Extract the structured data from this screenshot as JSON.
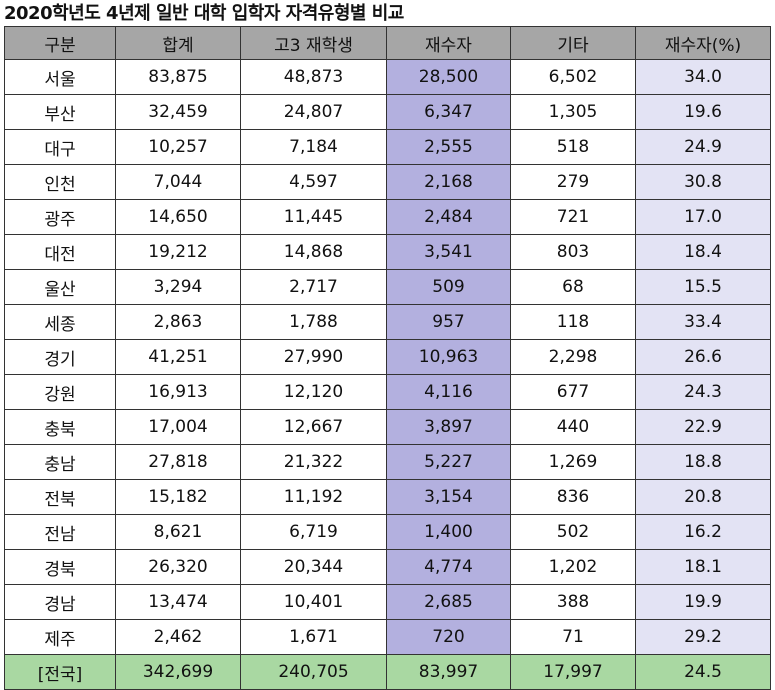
{
  "title": "2020학년도 4년제 일반 대학 입학자 자격유형별 비교",
  "colors": {
    "header_bg": "#a6a6a6",
    "jaesu_bg": "#b3b0df",
    "percent_bg": "#e3e3f4",
    "total_bg": "#a9d8a2"
  },
  "chart_data": {
    "type": "table",
    "title": "2020학년도 4년제 일반 대학 입학자 자격유형별 비교",
    "columns": [
      "구분",
      "합계",
      "고3 재학생",
      "재수자",
      "기타",
      "재수자(%)"
    ],
    "rows": [
      [
        "서울",
        "83,875",
        "48,873",
        "28,500",
        "6,502",
        "34.0"
      ],
      [
        "부산",
        "32,459",
        "24,807",
        "6,347",
        "1,305",
        "19.6"
      ],
      [
        "대구",
        "10,257",
        "7,184",
        "2,555",
        "518",
        "24.9"
      ],
      [
        "인천",
        "7,044",
        "4,597",
        "2,168",
        "279",
        "30.8"
      ],
      [
        "광주",
        "14,650",
        "11,445",
        "2,484",
        "721",
        "17.0"
      ],
      [
        "대전",
        "19,212",
        "14,868",
        "3,541",
        "803",
        "18.4"
      ],
      [
        "울산",
        "3,294",
        "2,717",
        "509",
        "68",
        "15.5"
      ],
      [
        "세종",
        "2,863",
        "1,788",
        "957",
        "118",
        "33.4"
      ],
      [
        "경기",
        "41,251",
        "27,990",
        "10,963",
        "2,298",
        "26.6"
      ],
      [
        "강원",
        "16,913",
        "12,120",
        "4,116",
        "677",
        "24.3"
      ],
      [
        "충북",
        "17,004",
        "12,667",
        "3,897",
        "440",
        "22.9"
      ],
      [
        "충남",
        "27,818",
        "21,322",
        "5,227",
        "1,269",
        "18.8"
      ],
      [
        "전북",
        "15,182",
        "11,192",
        "3,154",
        "836",
        "20.8"
      ],
      [
        "전남",
        "8,621",
        "6,719",
        "1,400",
        "502",
        "16.2"
      ],
      [
        "경북",
        "26,320",
        "20,344",
        "4,774",
        "1,202",
        "18.1"
      ],
      [
        "경남",
        "13,474",
        "10,401",
        "2,685",
        "388",
        "19.9"
      ],
      [
        "제주",
        "2,462",
        "1,671",
        "720",
        "71",
        "29.2"
      ]
    ],
    "total": [
      "[전국]",
      "342,699",
      "240,705",
      "83,997",
      "17,997",
      "24.5"
    ]
  }
}
